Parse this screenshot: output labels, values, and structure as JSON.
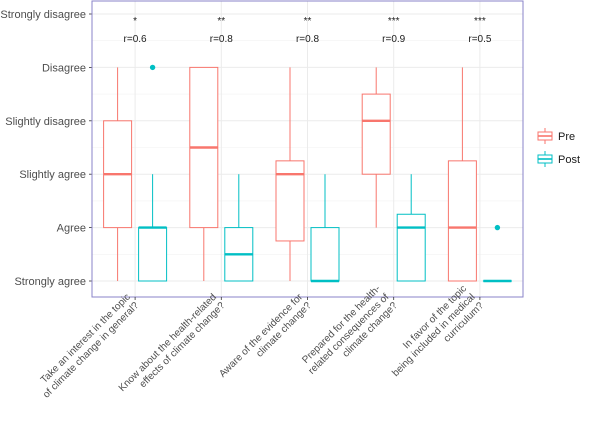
{
  "chart_data": {
    "type": "boxplot",
    "y_levels": [
      "Strongly agree",
      "Agree",
      "Slightly agree",
      "Slightly disagree",
      "Disagree",
      "Strongly disagree"
    ],
    "categories": [
      [
        "Take an interest in the topic",
        "of climate change in general?"
      ],
      [
        "Know about the health-related",
        "effects of climate change?"
      ],
      [
        "Aware of the evidence for",
        "climate change?"
      ],
      [
        "Prepared for the health-",
        "related consequences of",
        "climate change?"
      ],
      [
        "In favor of the topic",
        "being included in medical",
        "curriculum?"
      ]
    ],
    "annotations": [
      {
        "stars": "*",
        "r": "r=0.6"
      },
      {
        "stars": "**",
        "r": "r=0.8"
      },
      {
        "stars": "**",
        "r": "r=0.8"
      },
      {
        "stars": "***",
        "r": "r=0.9"
      },
      {
        "stars": "***",
        "r": "r=0.5"
      }
    ],
    "series": [
      {
        "name": "Pre",
        "color": "#f8766d",
        "boxes": [
          {
            "low": 1,
            "q1": 2,
            "median": 3,
            "q3": 4,
            "high": 5,
            "outliers": []
          },
          {
            "low": 1,
            "q1": 2,
            "median": 3.5,
            "q3": 5,
            "high": 5,
            "outliers": []
          },
          {
            "low": 1,
            "q1": 1.75,
            "median": 3,
            "q3": 3.25,
            "high": 5,
            "outliers": []
          },
          {
            "low": 2,
            "q1": 3,
            "median": 4,
            "q3": 4.5,
            "high": 5,
            "outliers": []
          },
          {
            "low": 1,
            "q1": 1,
            "median": 2,
            "q3": 3.25,
            "high": 5,
            "outliers": []
          }
        ]
      },
      {
        "name": "Post",
        "color": "#00bfc4",
        "boxes": [
          {
            "low": 1,
            "q1": 1,
            "median": 2,
            "q3": 2,
            "high": 3,
            "outliers": [
              5
            ]
          },
          {
            "low": 1,
            "q1": 1,
            "median": 1.5,
            "q3": 2,
            "high": 3,
            "outliers": []
          },
          {
            "low": 1,
            "q1": 1,
            "median": 1,
            "q3": 2,
            "high": 3,
            "outliers": []
          },
          {
            "low": 1,
            "q1": 1,
            "median": 2,
            "q3": 2.25,
            "high": 3,
            "outliers": []
          },
          {
            "low": 1,
            "q1": 1,
            "median": 1,
            "q3": 1,
            "high": 1,
            "outliers": [
              2
            ]
          }
        ]
      }
    ],
    "ylim": [
      1,
      6
    ],
    "grid": true,
    "legend": {
      "position": "right",
      "entries": [
        "Pre",
        "Post"
      ]
    },
    "colors": {
      "panel_border": "#8a83c9",
      "grid": "#ebebeb"
    }
  }
}
